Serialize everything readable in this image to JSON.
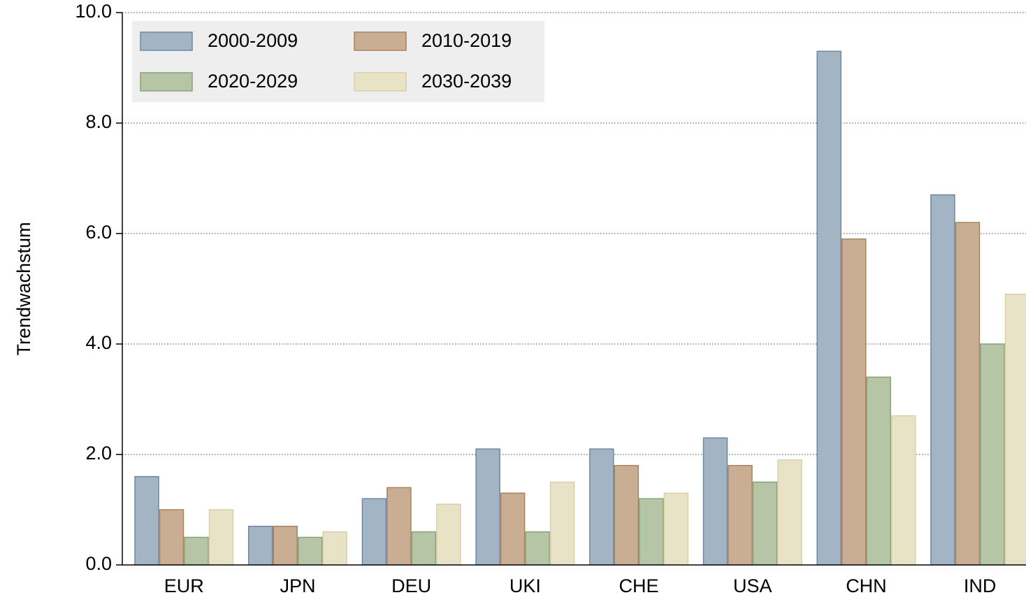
{
  "chart_data": {
    "type": "bar",
    "y_label": "Trendwachstum",
    "categories": [
      "EUR",
      "JPN",
      "DEU",
      "UKI",
      "CHE",
      "USA",
      "CHN",
      "IND"
    ],
    "series": [
      {
        "name": "2000-2009",
        "color": "#a3b4c5",
        "edgecolor": "#6e88a3",
        "values": [
          1.6,
          0.7,
          1.2,
          2.1,
          2.1,
          2.3,
          9.3,
          6.7
        ]
      },
      {
        "name": "2010-2019",
        "color": "#c9ae94",
        "edgecolor": "#a8825e",
        "values": [
          1.0,
          0.7,
          1.4,
          1.3,
          1.8,
          1.8,
          5.9,
          6.2
        ]
      },
      {
        "name": "2020-2029",
        "color": "#b5c5a5",
        "edgecolor": "#8aa276",
        "values": [
          0.5,
          0.5,
          0.6,
          0.6,
          1.2,
          1.5,
          3.4,
          4.0
        ]
      },
      {
        "name": "2030-2039",
        "color": "#e8e2c6",
        "edgecolor": "#d9d0a8",
        "values": [
          1.0,
          0.6,
          1.1,
          1.5,
          1.3,
          1.9,
          2.7,
          4.9
        ]
      }
    ],
    "ylim": [
      0,
      10
    ],
    "yticks": [
      {
        "value": 0,
        "label": "0.0"
      },
      {
        "value": 2,
        "label": "2.0"
      },
      {
        "value": 4,
        "label": "4.0"
      },
      {
        "value": 6,
        "label": "6.0"
      },
      {
        "value": 8,
        "label": "8.0"
      },
      {
        "value": 10,
        "label": "10.0"
      }
    ],
    "grid": true,
    "legend": "upper left"
  }
}
